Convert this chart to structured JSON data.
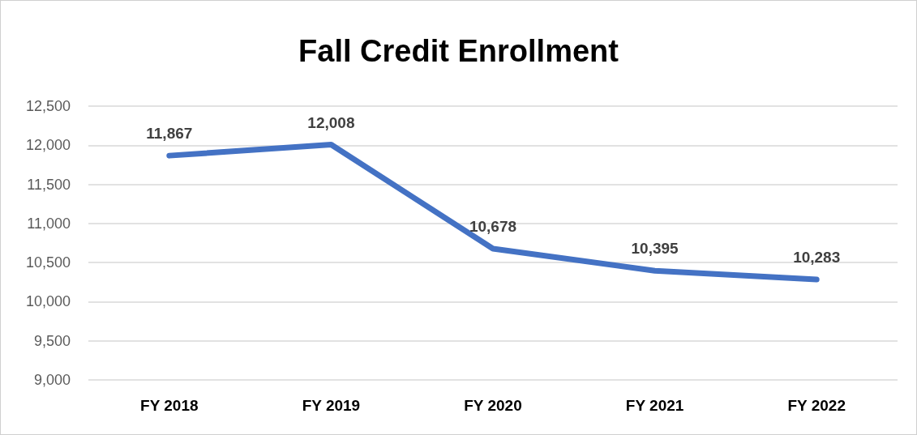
{
  "chart_data": {
    "type": "line",
    "title": "Fall Credit Enrollment",
    "categories": [
      "FY 2018",
      "FY 2019",
      "FY 2020",
      "FY 2021",
      "FY 2022"
    ],
    "series": [
      {
        "color": "#4472c4",
        "values": [
          11867,
          12008,
          10678,
          10395,
          10283
        ],
        "value_labels": [
          "11,867",
          "12,008",
          "10,678",
          "10,395",
          "10,283"
        ]
      }
    ],
    "ylim": [
      9000,
      12500
    ],
    "yticks": [
      {
        "value": 9000,
        "label": "9,000"
      },
      {
        "value": 9500,
        "label": "9,500"
      },
      {
        "value": 10000,
        "label": "10,000"
      },
      {
        "value": 10500,
        "label": "10,500"
      },
      {
        "value": 11000,
        "label": "11,000"
      },
      {
        "value": 11500,
        "label": "11,500"
      },
      {
        "value": 12000,
        "label": "12,000"
      },
      {
        "value": 12500,
        "label": "12,500"
      }
    ],
    "grid": "y",
    "marker": "none",
    "line_style": "solid"
  }
}
